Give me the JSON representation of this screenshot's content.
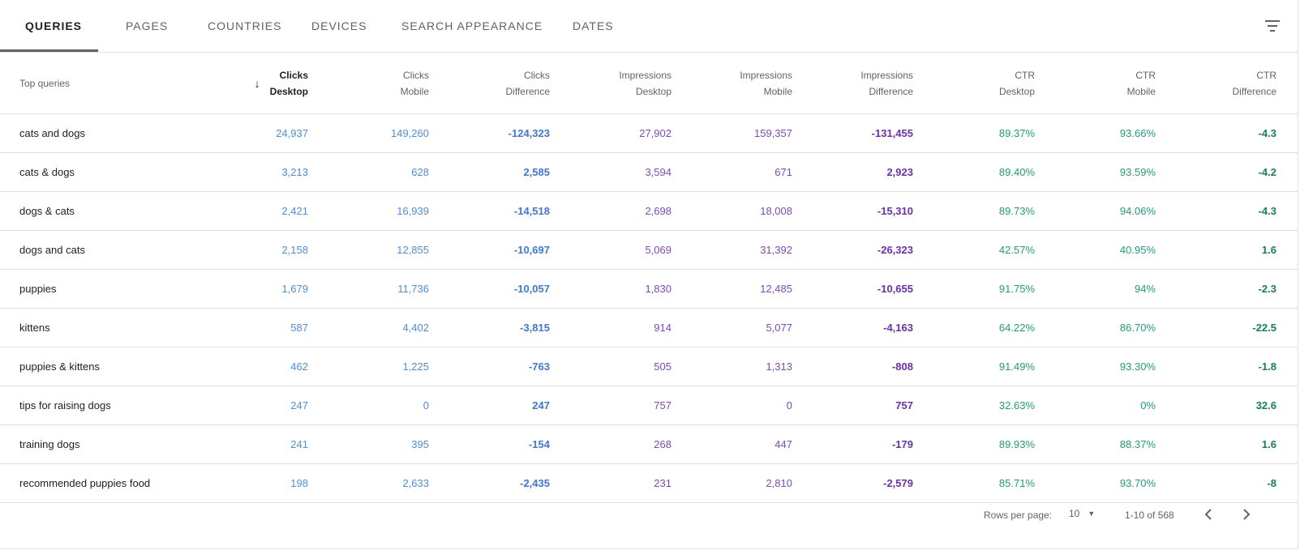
{
  "tabs": [
    {
      "label": "QUERIES",
      "active": true
    },
    {
      "label": "PAGES"
    },
    {
      "label": "COUNTRIES"
    },
    {
      "label": "DEVICES"
    },
    {
      "label": "SEARCH APPEARANCE"
    },
    {
      "label": "DATES"
    }
  ],
  "filter_icon": "filter-list-icon",
  "table": {
    "query_header": "Top queries",
    "sort_icon": "arrow-down-icon",
    "columns": [
      {
        "line1": "Clicks",
        "line2": "Desktop"
      },
      {
        "line1": "Clicks",
        "line2": "Mobile"
      },
      {
        "line1": "Clicks",
        "line2": "Difference"
      },
      {
        "line1": "Impressions",
        "line2": "Desktop"
      },
      {
        "line1": "Impressions",
        "line2": "Mobile"
      },
      {
        "line1": "Impressions",
        "line2": "Difference"
      },
      {
        "line1": "CTR",
        "line2": "Desktop"
      },
      {
        "line1": "CTR",
        "line2": "Mobile"
      },
      {
        "line1": "CTR",
        "line2": "Difference"
      }
    ],
    "rows": [
      {
        "query": "cats and dogs",
        "values": [
          "24,937",
          "149,260",
          "-124,323",
          "27,902",
          "159,357",
          "-131,455",
          "89.37%",
          "93.66%",
          "-4.3"
        ]
      },
      {
        "query": "cats & dogs",
        "values": [
          "3,213",
          "628",
          "2,585",
          "3,594",
          "671",
          "2,923",
          "89.40%",
          "93.59%",
          "-4.2"
        ]
      },
      {
        "query": "dogs & cats",
        "values": [
          "2,421",
          "16,939",
          "-14,518",
          "2,698",
          "18,008",
          "-15,310",
          "89.73%",
          "94.06%",
          "-4.3"
        ]
      },
      {
        "query": "dogs and cats",
        "values": [
          "2,158",
          "12,855",
          "-10,697",
          "5,069",
          "31,392",
          "-26,323",
          "42.57%",
          "40.95%",
          "1.6"
        ]
      },
      {
        "query": "puppies",
        "values": [
          "1,679",
          "11,736",
          "-10,057",
          "1,830",
          "12,485",
          "-10,655",
          "91.75%",
          "94%",
          "-2.3"
        ]
      },
      {
        "query": "kittens",
        "values": [
          "587",
          "4,402",
          "-3,815",
          "914",
          "5,077",
          "-4,163",
          "64.22%",
          "86.70%",
          "-22.5"
        ]
      },
      {
        "query": "puppies & kittens",
        "values": [
          "462",
          "1,225",
          "-763",
          "505",
          "1,313",
          "-808",
          "91.49%",
          "93.30%",
          "-1.8"
        ]
      },
      {
        "query": "tips for raising dogs",
        "values": [
          "247",
          "0",
          "247",
          "757",
          "0",
          "757",
          "32.63%",
          "0%",
          "32.6"
        ]
      },
      {
        "query": "training dogs",
        "values": [
          "241",
          "395",
          "-154",
          "268",
          "447",
          "-179",
          "89.93%",
          "88.37%",
          "1.6"
        ]
      },
      {
        "query": "recommended puppies food",
        "values": [
          "198",
          "2,633",
          "-2,435",
          "231",
          "2,810",
          "-2,579",
          "85.71%",
          "93.70%",
          "-8"
        ]
      }
    ]
  },
  "footer": {
    "rows_per_page_label": "Rows per page:",
    "rows_per_page_value": "10",
    "range": "1-10 of 568",
    "prev_icon": "chevron-left-icon",
    "next_icon": "chevron-right-icon"
  }
}
